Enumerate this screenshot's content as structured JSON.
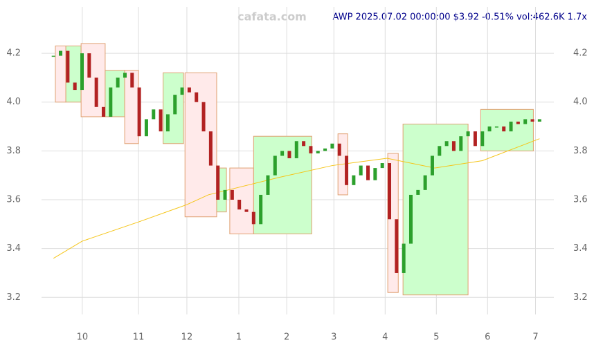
{
  "chart_data": {
    "type": "candlestick",
    "watermark": "cafata.com",
    "title": "AWP 2025.07.02 00:00:00 $3.92 -0.51% vol:462.6K 1.7x",
    "xlim": [
      0,
      215
    ],
    "ylim": [
      3.13,
      4.39
    ],
    "xticks": [
      {
        "value": 17.1,
        "label": "10"
      },
      {
        "value": 40.7,
        "label": "11"
      },
      {
        "value": 61,
        "label": "12"
      },
      {
        "value": 82.8,
        "label": "1"
      },
      {
        "value": 102.9,
        "label": "2"
      },
      {
        "value": 122.7,
        "label": "3"
      },
      {
        "value": 144.2,
        "label": "4"
      },
      {
        "value": 165.7,
        "label": "5"
      },
      {
        "value": 187.2,
        "label": "6"
      },
      {
        "value": 207.3,
        "label": "7"
      }
    ],
    "yticks": [
      3.2,
      3.4,
      3.6,
      3.8,
      {
        "value": 4,
        "label": "4.0"
      },
      4.2
    ],
    "grid": true,
    "up_color": "#2ca02c",
    "down_color": "#b22222",
    "x": [
      5,
      8,
      11,
      14,
      17,
      20,
      23,
      26,
      29,
      32,
      35,
      38,
      41,
      44,
      47,
      50,
      53,
      56,
      59,
      62,
      65,
      68,
      71,
      74,
      77,
      80,
      83,
      86,
      89,
      92,
      95,
      98,
      101,
      104,
      107,
      110,
      113,
      116,
      119,
      122,
      125,
      128,
      131,
      134,
      137,
      140,
      143,
      146,
      149,
      152,
      155,
      158,
      161,
      164,
      167,
      170,
      173,
      176,
      179,
      182,
      185,
      188,
      191,
      194,
      197,
      200,
      203,
      206,
      209
    ],
    "close": [
      4.19,
      4.21,
      4.08,
      4.05,
      4.2,
      4.1,
      3.98,
      3.94,
      4.06,
      4.1,
      4.12,
      4.06,
      3.86,
      3.93,
      3.97,
      3.88,
      3.95,
      4.03,
      4.06,
      4.04,
      4,
      3.88,
      3.74,
      3.6,
      3.64,
      3.6,
      3.56,
      3.55,
      3.5,
      3.62,
      3.7,
      3.78,
      3.8,
      3.77,
      3.84,
      3.82,
      3.79,
      3.8,
      3.81,
      3.83,
      3.78,
      3.66,
      3.7,
      3.74,
      3.68,
      3.73,
      3.75,
      3.52,
      3.3,
      3.42,
      3.62,
      3.64,
      3.7,
      3.78,
      3.82,
      3.84,
      3.8,
      3.86,
      3.88,
      3.82,
      3.88,
      3.9,
      3.9,
      3.88,
      3.92,
      3.91,
      3.93,
      3.92,
      3.93
    ],
    "ma": {
      "color": "#f5c518",
      "x": [
        5,
        17,
        41,
        61,
        70,
        99,
        122,
        145,
        165,
        185,
        209
      ],
      "values": [
        3.36,
        3.43,
        3.51,
        3.58,
        3.62,
        3.69,
        3.74,
        3.77,
        3.73,
        3.76,
        3.85
      ]
    },
    "boxes": [
      {
        "x": [
          5.8,
          10.2
        ],
        "y": [
          4.0,
          4.23
        ],
        "color": "red"
      },
      {
        "x": [
          10.2,
          16.6
        ],
        "y": [
          4.0,
          4.23
        ],
        "color": "green"
      },
      {
        "x": [
          16.6,
          26.7
        ],
        "y": [
          3.94,
          4.24
        ],
        "color": "red"
      },
      {
        "x": [
          26.7,
          34.9
        ],
        "y": [
          3.94,
          4.13
        ],
        "color": "green"
      },
      {
        "x": [
          34.9,
          40.7
        ],
        "y": [
          3.83,
          4.13
        ],
        "color": "red"
      },
      {
        "x": [
          51,
          59.6
        ],
        "y": [
          3.83,
          4.12
        ],
        "color": "green"
      },
      {
        "x": [
          60.2,
          73.5
        ],
        "y": [
          3.53,
          4.12
        ],
        "color": "red"
      },
      {
        "x": [
          73.5,
          77.6
        ],
        "y": [
          3.55,
          3.73
        ],
        "color": "green"
      },
      {
        "x": [
          79,
          89
        ],
        "y": [
          3.46,
          3.73
        ],
        "color": "red"
      },
      {
        "x": [
          89,
          113.4
        ],
        "y": [
          3.46,
          3.86
        ],
        "color": "green"
      },
      {
        "x": [
          124.4,
          128.5
        ],
        "y": [
          3.62,
          3.87
        ],
        "color": "red"
      },
      {
        "x": [
          145.3,
          149.7
        ],
        "y": [
          3.22,
          3.79
        ],
        "color": "red"
      },
      {
        "x": [
          151.7,
          179
        ],
        "y": [
          3.21,
          3.91
        ],
        "color": "green"
      },
      {
        "x": [
          184.3,
          206.4
        ],
        "y": [
          3.8,
          3.97
        ],
        "color": "green"
      }
    ]
  }
}
